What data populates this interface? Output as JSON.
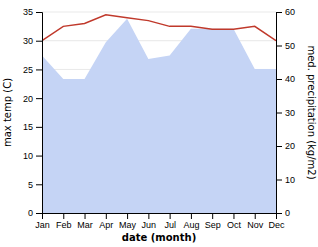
{
  "chart_data": {
    "type": "line",
    "categories": [
      "Jan",
      "Feb",
      "Mar",
      "Apr",
      "May",
      "Jun",
      "Jul",
      "Aug",
      "Sep",
      "Oct",
      "Nov",
      "Dec"
    ],
    "xlabel": "date (month)",
    "ylabel": "max temp (C)",
    "y2label": "med. precipitation (kg/m2)",
    "ylim": [
      0,
      35
    ],
    "yticks": [
      0,
      5,
      10,
      15,
      20,
      25,
      30,
      35
    ],
    "y2lim": [
      0,
      60
    ],
    "y2ticks": [
      0,
      10,
      20,
      30,
      40,
      50,
      60
    ],
    "grid": true,
    "series": [
      {
        "type": "area",
        "axis": "y2",
        "color": "#c5d4f5",
        "values": [
          47.0,
          40.0,
          40.0,
          51.0,
          58.0,
          46.0,
          47.0,
          55.0,
          55.0,
          55.0,
          43.0,
          43.0
        ]
      },
      {
        "type": "line",
        "color": "#c0392b",
        "values": [
          30.0,
          32.5,
          33.0,
          34.5,
          34.0,
          33.5,
          32.5,
          32.5,
          32.0,
          32.0,
          32.5,
          30.0
        ]
      }
    ]
  }
}
